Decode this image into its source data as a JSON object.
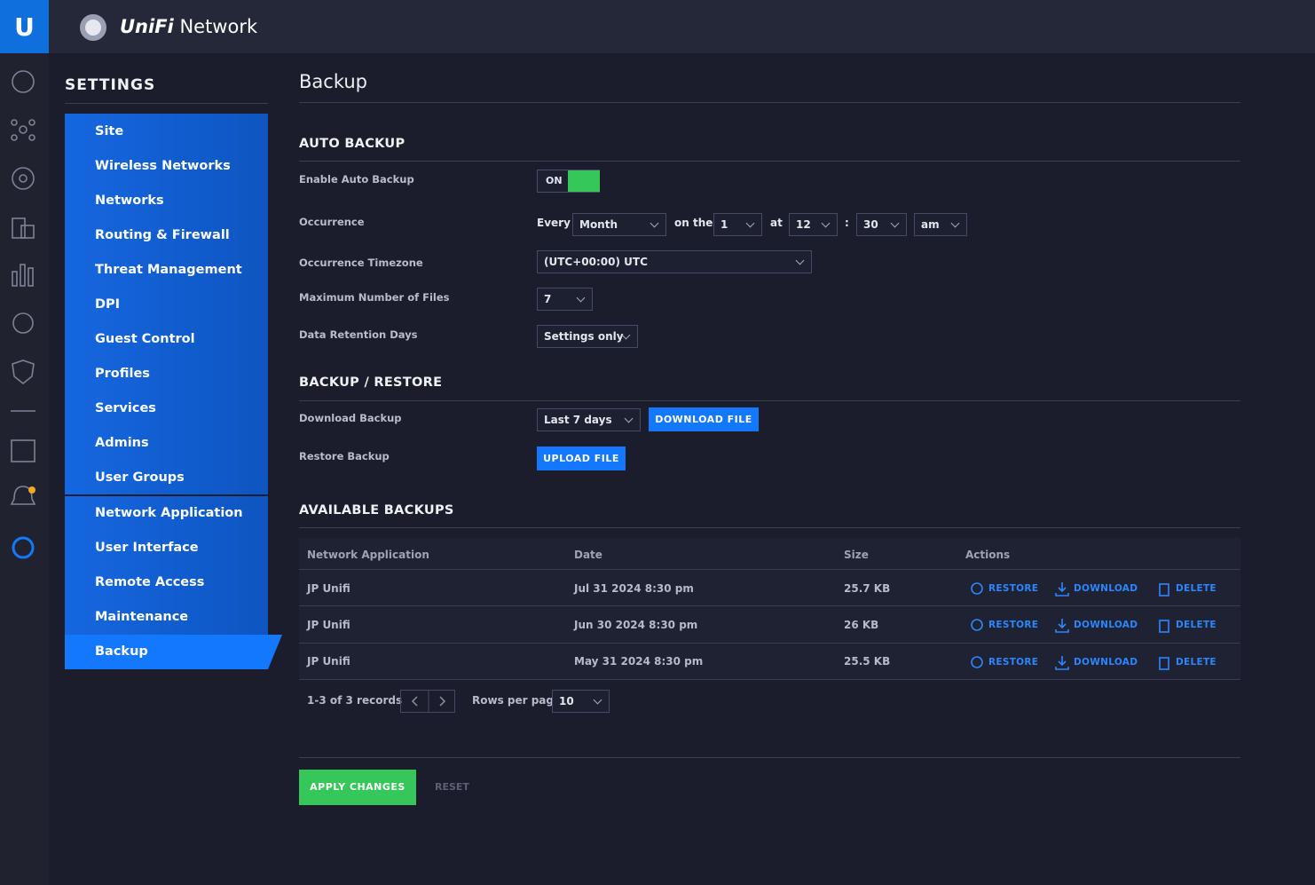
{
  "header": {
    "brand": "UniFi",
    "product": "Network"
  },
  "sidebar": {
    "title": "SETTINGS",
    "groups": [
      [
        "Site",
        "Wireless Networks",
        "Networks",
        "Routing & Firewall",
        "Threat Management",
        "DPI",
        "Guest Control",
        "Profiles",
        "Services",
        "Admins",
        "User Groups"
      ],
      [
        "Network Application",
        "User Interface",
        "Remote Access",
        "Maintenance",
        "Backup"
      ]
    ]
  },
  "page": {
    "title": "Backup"
  },
  "auto_backup": {
    "title": "AUTO BACKUP",
    "enable": {
      "label": "Enable Auto Backup",
      "toggle": "ON"
    },
    "occurrence": {
      "label": "Occurrence",
      "every": "Every",
      "period": "Month",
      "on_the": "on the",
      "day": 1,
      "at": "at",
      "hour": 12,
      "separator": ":",
      "minute": 30,
      "ampm": "am"
    },
    "timezone": {
      "label": "Occurrence Timezone",
      "value": "(UTC+00:00) UTC"
    },
    "max_files": {
      "label": "Maximum Number of Files",
      "value": 7
    },
    "retention": {
      "label": "Data Retention Days",
      "value": "Settings only"
    }
  },
  "backup_restore": {
    "title": "BACKUP / RESTORE",
    "download": {
      "label": "Download Backup",
      "range": "Last 7 days",
      "button": "DOWNLOAD FILE"
    },
    "restore": {
      "label": "Restore Backup",
      "button": "UPLOAD FILE"
    }
  },
  "available": {
    "title": "AVAILABLE BACKUPS",
    "headers": [
      "Network Application",
      "Date",
      "Size",
      "Actions"
    ],
    "rows": [
      [
        "JP Unifi",
        "Jul 31 2024 8:30 pm",
        "25.7 KB"
      ],
      [
        "JP Unifi",
        "Jun 30 2024 8:30 pm",
        "26 KB"
      ],
      [
        "JP Unifi",
        "May 31 2024 8:30 pm",
        "25.5 KB"
      ]
    ],
    "actions": [
      "RESTORE",
      "DOWNLOAD",
      "DELETE"
    ],
    "pagination": {
      "records": "1-3 of 3 records",
      "rows_label": "Rows per page:",
      "rows_value": 10
    }
  },
  "footer": {
    "apply": "APPLY CHANGES",
    "reset": "RESET"
  }
}
